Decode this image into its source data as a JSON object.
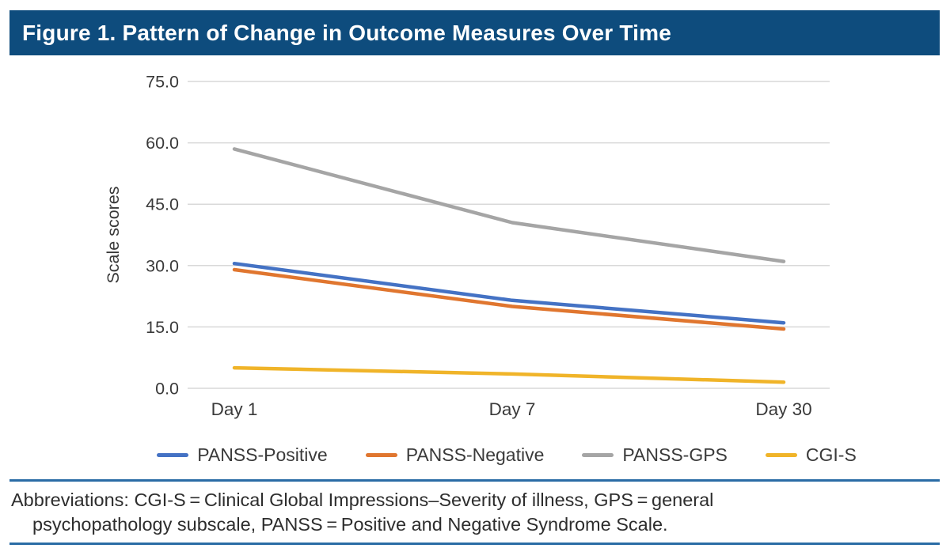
{
  "figure": {
    "header_bg": "#0E4C7D",
    "rule_color": "#2A6CA5"
  },
  "chart_data": {
    "type": "line",
    "title": "Figure 1. Pattern of Change in Outcome Measures Over Time",
    "categories": [
      "Day 1",
      "Day 7",
      "Day 30"
    ],
    "series": [
      {
        "name": "PANSS-Positive",
        "color": "#4472C4",
        "values": [
          30.5,
          21.5,
          16.0
        ]
      },
      {
        "name": "PANSS-Negative",
        "color": "#E0762F",
        "values": [
          29.0,
          20.0,
          14.5
        ]
      },
      {
        "name": "PANSS-GPS",
        "color": "#A5A5A5",
        "values": [
          58.5,
          40.5,
          31.0
        ]
      },
      {
        "name": "CGI-S",
        "color": "#F0B429",
        "values": [
          5.0,
          3.5,
          1.5
        ]
      }
    ],
    "xlabel": "",
    "ylabel": "Scale scores",
    "ylim": [
      0,
      75
    ],
    "yticks": [
      0,
      15,
      30,
      45,
      60,
      75
    ],
    "ytick_labels": [
      "0.0",
      "15.0",
      "30.0",
      "45.0",
      "60.0",
      "75.0"
    ],
    "grid": true,
    "gridline_color": "#D9D9D9",
    "axis_text_color": "#3a3a3a",
    "legend_position": "bottom"
  },
  "footnote": {
    "line1": "Abbreviations: CGI-S = Clinical Global Impressions–Severity of illness, GPS = general",
    "line2": "psychopathology subscale, PANSS = Positive and Negative Syndrome Scale."
  }
}
